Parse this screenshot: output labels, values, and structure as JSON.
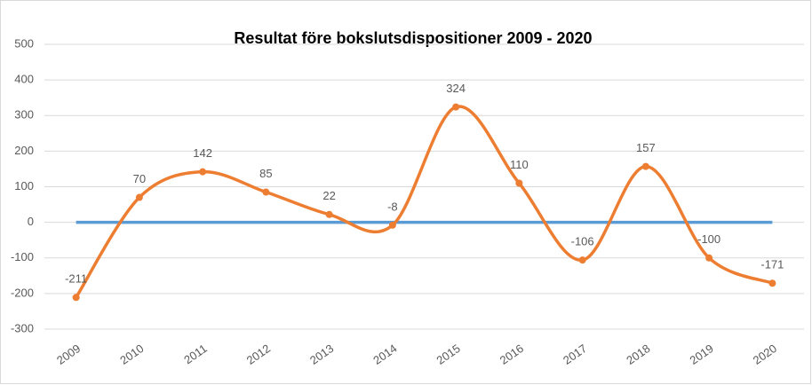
{
  "chart_data": {
    "type": "line",
    "title": "Resultat före bokslutsdispositioner 2009 - 2020",
    "categories": [
      "2009",
      "2010",
      "2011",
      "2012",
      "2013",
      "2014",
      "2015",
      "2016",
      "2017",
      "2018",
      "2019",
      "2020"
    ],
    "values": [
      -211,
      70,
      142,
      85,
      22,
      -8,
      324,
      110,
      -106,
      157,
      -100,
      -171
    ],
    "color": "#ed7d31",
    "smooth": true,
    "zero_line_color": "#5b9bd5",
    "ylim": [
      -300,
      500
    ],
    "yticks": [
      -300,
      -200,
      -100,
      0,
      100,
      200,
      300,
      400,
      500
    ],
    "grid": true
  }
}
